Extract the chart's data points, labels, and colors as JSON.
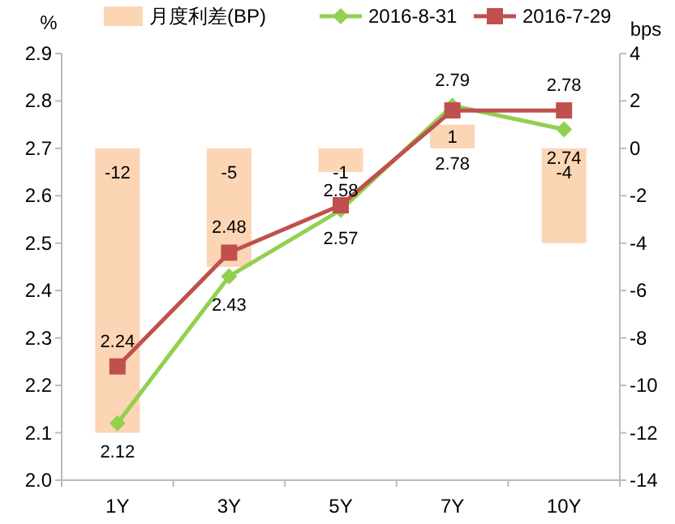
{
  "chart_data": {
    "type": "bar",
    "categories": [
      "1Y",
      "3Y",
      "5Y",
      "7Y",
      "10Y"
    ],
    "ylabel": "%",
    "y2label": "bps",
    "ylim": [
      2.0,
      2.9
    ],
    "yticks": [
      {
        "value": 2.0,
        "label": "2.0"
      },
      {
        "value": 2.1,
        "label": "2.1"
      },
      {
        "value": 2.2,
        "label": "2.2"
      },
      {
        "value": 2.3,
        "label": "2.3"
      },
      {
        "value": 2.4,
        "label": "2.4"
      },
      {
        "value": 2.5,
        "label": "2.5"
      },
      {
        "value": 2.6,
        "label": "2.6"
      },
      {
        "value": 2.7,
        "label": "2.7"
      },
      {
        "value": 2.8,
        "label": "2.8"
      },
      {
        "value": 2.9,
        "label": "2.9"
      }
    ],
    "y2lim": [
      -14,
      4
    ],
    "y2ticks": [
      -14,
      -12,
      -10,
      -8,
      -6,
      -4,
      -2,
      0,
      2,
      4
    ],
    "series": [
      {
        "name": "月度利差(BP)",
        "axis": "y2",
        "color": "#fcd5b5",
        "values": [
          -12,
          -5,
          -1,
          1,
          -4
        ]
      },
      {
        "name": "2016-8-31",
        "type": "line",
        "marker": "diamond",
        "color": "#92d050",
        "values": [
          2.12,
          2.43,
          2.57,
          2.79,
          2.74
        ]
      },
      {
        "name": "2016-7-29",
        "type": "line",
        "marker": "square",
        "color": "#c0504d",
        "values": [
          2.24,
          2.48,
          2.58,
          2.78,
          2.78
        ]
      }
    ],
    "data_labels": true,
    "legend": "top",
    "grid": false
  }
}
